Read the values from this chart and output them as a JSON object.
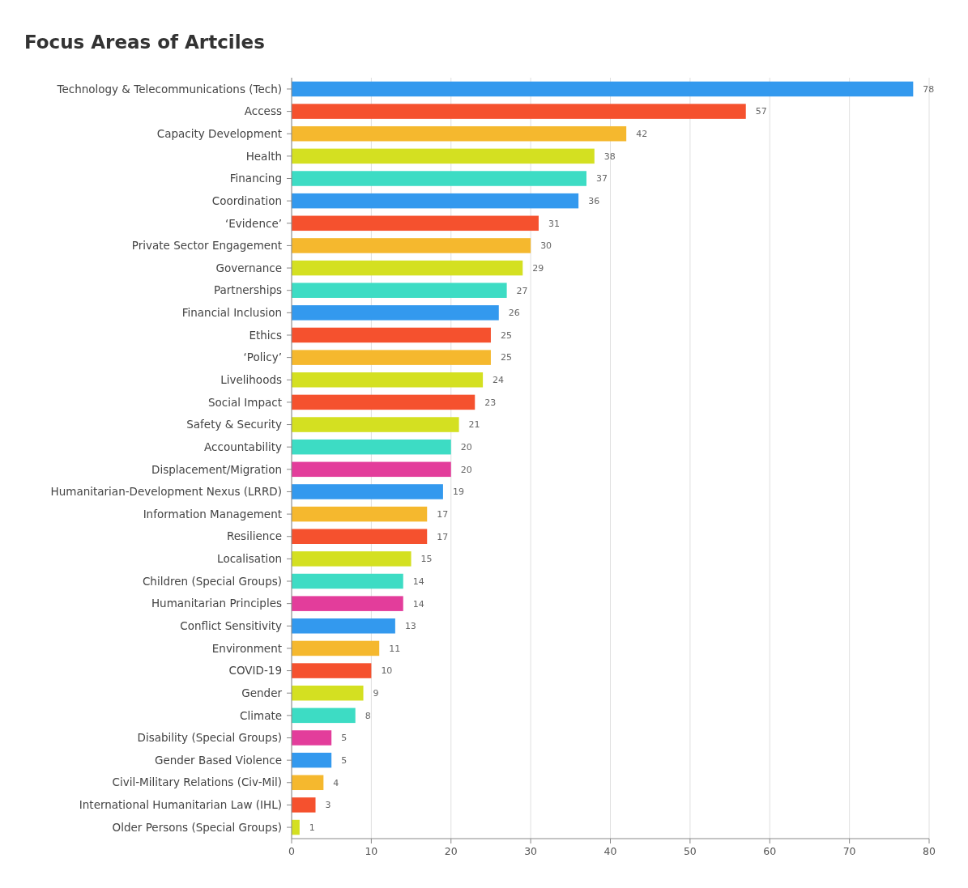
{
  "chart_data": {
    "type": "bar",
    "orientation": "horizontal",
    "title": "Focus Areas of Artciles",
    "categories": [
      "Technology & Telecommunications (Tech)",
      "Access",
      "Capacity Development",
      "Health",
      "Financing",
      "Coordination",
      "‘Evidence’",
      "Private Sector Engagement",
      "Governance",
      "Partnerships",
      "Financial Inclusion",
      "Ethics",
      "‘Policy’",
      "Livelihoods",
      "Social Impact",
      "Safety & Security",
      "Accountability",
      "Displacement/Migration",
      "Humanitarian-Development Nexus (LRRD)",
      "Information Management",
      "Resilience",
      "Localisation",
      "Children (Special Groups)",
      "Humanitarian Principles",
      "Conflict Sensitivity",
      "Environment",
      "COVID-19",
      "Gender",
      "Climate",
      "Disability (Special Groups)",
      "Gender Based Violence",
      "Civil-Military Relations (Civ-Mil)",
      "International Humanitarian Law (IHL)",
      "Older Persons (Special Groups)"
    ],
    "values": [
      78,
      57,
      42,
      38,
      37,
      36,
      31,
      30,
      29,
      27,
      26,
      25,
      25,
      24,
      23,
      21,
      20,
      20,
      19,
      17,
      17,
      15,
      14,
      14,
      13,
      11,
      10,
      9,
      8,
      5,
      5,
      4,
      3,
      1
    ],
    "colors": [
      "#3399ee",
      "#f5512e",
      "#f5b82e",
      "#d4e021",
      "#3ddcc4",
      "#3399ee",
      "#f5512e",
      "#f5b82e",
      "#d4e021",
      "#3ddcc4",
      "#3399ee",
      "#f5512e",
      "#f5b82e",
      "#d4e021",
      "#f5512e",
      "#d4e021",
      "#3ddcc4",
      "#e33d9b",
      "#3399ee",
      "#f5b82e",
      "#f5512e",
      "#d4e021",
      "#3ddcc4",
      "#e33d9b",
      "#3399ee",
      "#f5b82e",
      "#f5512e",
      "#d4e021",
      "#3ddcc4",
      "#e33d9b",
      "#3399ee",
      "#f5b82e",
      "#f5512e",
      "#d4e021"
    ],
    "xlim": [
      0,
      80
    ],
    "xticks": [
      0,
      10,
      20,
      30,
      40,
      50,
      60,
      70,
      80
    ],
    "grid": "x",
    "data_labels": true
  }
}
